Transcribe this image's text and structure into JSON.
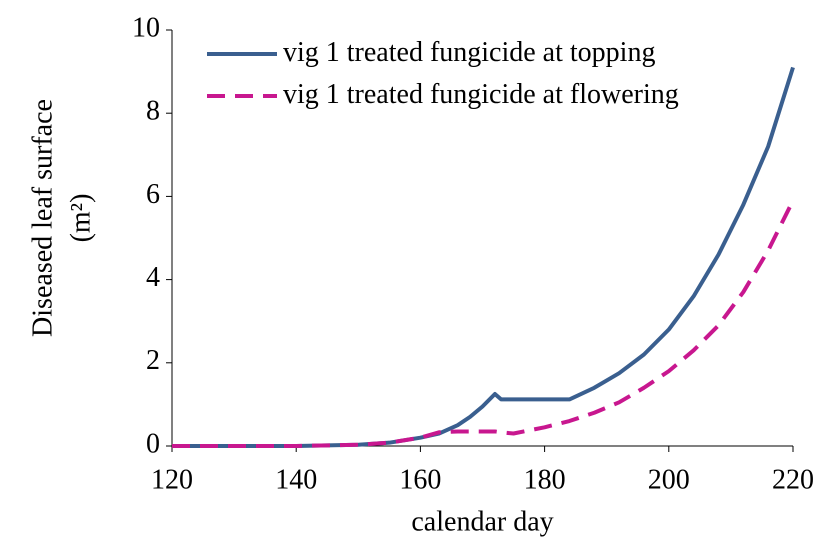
{
  "chart_data": {
    "type": "line",
    "xlabel": "calendar day",
    "ylabel": [
      "Diseased leaf surface",
      "(m²)"
    ],
    "x": [
      120,
      140,
      150,
      155,
      160,
      163,
      166,
      168,
      170,
      172,
      173,
      175,
      180,
      184,
      188,
      192,
      196,
      200,
      204,
      208,
      212,
      216,
      220
    ],
    "series": [
      {
        "name": "vig 1 treated fungicide at topping",
        "color": "#3a5f8f",
        "dash": false,
        "values": [
          0,
          0,
          0.03,
          0.08,
          0.2,
          0.3,
          0.5,
          0.7,
          0.95,
          1.25,
          1.12,
          1.12,
          1.12,
          1.12,
          1.4,
          1.75,
          2.2,
          2.8,
          3.6,
          4.6,
          5.8,
          7.2,
          9.1
        ]
      },
      {
        "name": "vig 1 treated fungicide at flowering",
        "color": "#c8178f",
        "dash": true,
        "values": [
          0,
          0,
          0.03,
          0.08,
          0.2,
          0.33,
          0.35,
          0.35,
          0.35,
          0.35,
          0.33,
          0.3,
          0.45,
          0.6,
          0.8,
          1.05,
          1.4,
          1.8,
          2.3,
          2.9,
          3.7,
          4.7,
          5.9
        ]
      }
    ],
    "xlim": [
      120,
      220
    ],
    "xticks": [
      120,
      140,
      160,
      180,
      200,
      220
    ],
    "ylim": [
      0,
      10
    ],
    "yticks": [
      0,
      2,
      4,
      6,
      8,
      10
    ],
    "legend": "upper left"
  }
}
